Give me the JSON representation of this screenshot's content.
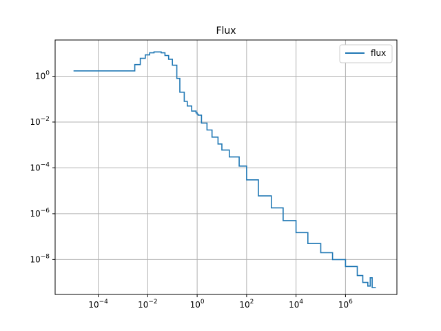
{
  "chart_data": {
    "type": "line",
    "title": "Flux",
    "xlabel": "",
    "ylabel": "",
    "xscale": "log",
    "yscale": "log",
    "xlim": [
      1.8e-06,
      120000000.0
    ],
    "ylim": [
      3e-10,
      38.0
    ],
    "grid": true,
    "legend_position": "top-right",
    "step": "post",
    "x_ticks": [
      {
        "value": 0.0001,
        "base": "10",
        "exp": "−4"
      },
      {
        "value": 0.01,
        "base": "10",
        "exp": "−2"
      },
      {
        "value": 1,
        "base": "10",
        "exp": "0"
      },
      {
        "value": 100.0,
        "base": "10",
        "exp": "2"
      },
      {
        "value": 10000.0,
        "base": "10",
        "exp": "4"
      },
      {
        "value": 1000000.0,
        "base": "10",
        "exp": "6"
      }
    ],
    "y_ticks": [
      {
        "value": 1e-08,
        "base": "10",
        "exp": "−8"
      },
      {
        "value": 1e-06,
        "base": "10",
        "exp": "−6"
      },
      {
        "value": 0.0001,
        "base": "10",
        "exp": "−4"
      },
      {
        "value": 0.01,
        "base": "10",
        "exp": "−2"
      },
      {
        "value": 1,
        "base": "10",
        "exp": "0"
      }
    ],
    "series": [
      {
        "name": "flux",
        "color": "#1f77b4",
        "x": [
          1e-05,
          0.003,
          0.005,
          0.008,
          0.012,
          0.018,
          0.025,
          0.035,
          0.05,
          0.07,
          0.1,
          0.15,
          0.2,
          0.3,
          0.4,
          0.6,
          0.9,
          1.0,
          1.1,
          1.5,
          2.5,
          4,
          7,
          10,
          20,
          50,
          100,
          300,
          1000,
          3000,
          10000.0,
          30000.0,
          100000.0,
          300000.0,
          1000000.0,
          3000000.0,
          5000000.0,
          8000000.0,
          10000000.0,
          12000000.0,
          17000000.0
        ],
        "y": [
          1.7,
          3.2,
          6.0,
          8.5,
          10.5,
          11.5,
          11.5,
          10.5,
          8.0,
          5.5,
          3.0,
          0.8,
          0.2,
          0.08,
          0.05,
          0.03,
          0.025,
          0.022,
          0.02,
          0.009,
          0.0045,
          0.0022,
          0.0011,
          0.0006,
          0.0003,
          0.00012,
          3e-05,
          6e-06,
          1.8e-06,
          5e-07,
          1.5e-07,
          5e-08,
          2e-08,
          1e-08,
          5e-09,
          2e-09,
          1e-09,
          7e-10,
          1.6e-09,
          6e-10,
          6e-10
        ]
      }
    ]
  }
}
